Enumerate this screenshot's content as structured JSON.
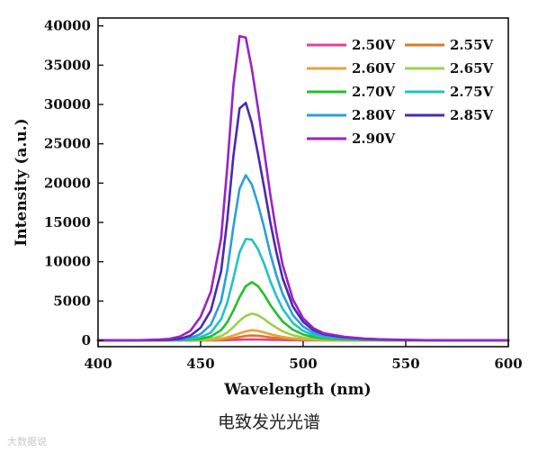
{
  "caption": "电致发光光谱",
  "watermark": "大数据说",
  "chart_data": {
    "type": "line",
    "xlabel": "Wavelength (nm)",
    "ylabel": "Intensity (a.u.)",
    "xlim": [
      400,
      600
    ],
    "ylim": [
      -800,
      41000
    ],
    "xticks": [
      400,
      450,
      500,
      550,
      600
    ],
    "yticks": [
      0,
      5000,
      10000,
      15000,
      20000,
      25000,
      30000,
      35000,
      40000
    ],
    "grid": false,
    "legend_position": "top-right",
    "x": [
      400,
      410,
      420,
      430,
      435,
      440,
      445,
      450,
      455,
      460,
      463,
      466,
      469,
      472,
      475,
      478,
      481,
      484,
      487,
      490,
      495,
      500,
      505,
      510,
      520,
      530,
      540,
      550,
      560,
      570,
      580,
      590,
      600
    ],
    "series": [
      {
        "name": "2.50V",
        "color": "#e0409a",
        "values": [
          0,
          0,
          0,
          0,
          0,
          0,
          0,
          0,
          5,
          15,
          30,
          55,
          85,
          110,
          120,
          110,
          90,
          70,
          55,
          40,
          22,
          12,
          8,
          5,
          3,
          2,
          0,
          0,
          0,
          0,
          0,
          0,
          0
        ]
      },
      {
        "name": "2.55V",
        "color": "#d97a20",
        "values": [
          0,
          0,
          0,
          0,
          0,
          0,
          0,
          10,
          30,
          80,
          160,
          280,
          420,
          560,
          620,
          580,
          480,
          380,
          290,
          210,
          120,
          70,
          40,
          25,
          12,
          6,
          3,
          0,
          0,
          0,
          0,
          0,
          0
        ]
      },
      {
        "name": "2.60V",
        "color": "#e8a23a",
        "values": [
          0,
          0,
          0,
          0,
          0,
          0,
          10,
          30,
          80,
          200,
          380,
          620,
          900,
          1150,
          1300,
          1200,
          1000,
          780,
          600,
          440,
          250,
          140,
          80,
          50,
          25,
          12,
          6,
          3,
          0,
          0,
          0,
          0,
          0
        ]
      },
      {
        "name": "2.65V",
        "color": "#9cd04a",
        "values": [
          0,
          0,
          0,
          0,
          0,
          10,
          30,
          80,
          200,
          550,
          1000,
          1700,
          2500,
          3100,
          3400,
          3200,
          2700,
          2100,
          1600,
          1150,
          650,
          360,
          200,
          120,
          60,
          30,
          15,
          8,
          4,
          0,
          0,
          0,
          0
        ]
      },
      {
        "name": "2.70V",
        "color": "#22c02a",
        "values": [
          0,
          0,
          0,
          5,
          10,
          30,
          80,
          200,
          500,
          1300,
          2300,
          3800,
          5500,
          6900,
          7400,
          6900,
          5800,
          4500,
          3400,
          2400,
          1350,
          750,
          420,
          250,
          120,
          60,
          30,
          15,
          8,
          4,
          0,
          0,
          0
        ]
      },
      {
        "name": "2.75V",
        "color": "#22c2c2",
        "values": [
          0,
          0,
          5,
          10,
          20,
          60,
          160,
          400,
          1000,
          2700,
          4800,
          7900,
          11200,
          12900,
          12800,
          11600,
          9700,
          7500,
          5600,
          4000,
          2200,
          1200,
          680,
          400,
          200,
          100,
          50,
          25,
          12,
          6,
          0,
          0,
          0
        ]
      },
      {
        "name": "2.80V",
        "color": "#2aa0d8",
        "values": [
          0,
          0,
          5,
          20,
          40,
          110,
          300,
          800,
          2000,
          5000,
          8900,
          14500,
          19300,
          21000,
          19800,
          17300,
          14300,
          11000,
          8200,
          5900,
          3200,
          1750,
          980,
          580,
          290,
          150,
          75,
          38,
          18,
          9,
          4,
          0,
          0
        ]
      },
      {
        "name": "2.85V",
        "color": "#4a2ab0",
        "values": [
          0,
          5,
          10,
          40,
          80,
          220,
          600,
          1600,
          3800,
          8800,
          15300,
          23500,
          29500,
          30200,
          27600,
          23700,
          19400,
          15000,
          11100,
          7900,
          4300,
          2350,
          1300,
          780,
          390,
          200,
          100,
          50,
          25,
          12,
          6,
          3,
          0
        ]
      },
      {
        "name": "2.90V",
        "color": "#9a22c8",
        "values": [
          0,
          10,
          30,
          100,
          200,
          500,
          1200,
          3000,
          6200,
          13000,
          22000,
          32500,
          38700,
          38500,
          34500,
          29500,
          24000,
          18500,
          13600,
          9600,
          5200,
          2800,
          1550,
          920,
          460,
          230,
          115,
          58,
          29,
          15,
          8,
          4,
          0
        ]
      }
    ]
  }
}
